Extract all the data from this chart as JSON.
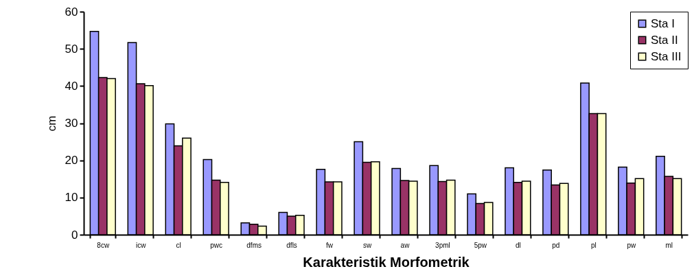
{
  "chart_data": {
    "type": "bar",
    "xlabel": "Karakteristik Morfometrik",
    "ylabel": "cm",
    "categories": [
      "8cw",
      "icw",
      "cl",
      "pwc",
      "dfms",
      "dfls",
      "fw",
      "sw",
      "aw",
      "3pml",
      "5pw",
      "dl",
      "pd",
      "pl",
      "pw",
      "ml"
    ],
    "series": [
      {
        "name": "Sta I",
        "color": "#9999ff",
        "values": [
          54.7,
          51.7,
          29.8,
          20.2,
          3.2,
          6.0,
          17.6,
          25.0,
          17.8,
          18.6,
          11.0,
          18.0,
          17.4,
          40.8,
          18.2,
          21.1
        ]
      },
      {
        "name": "Sta II",
        "color": "#993366",
        "values": [
          42.3,
          40.6,
          23.9,
          14.7,
          2.8,
          5.0,
          14.2,
          19.5,
          14.6,
          14.3,
          8.4,
          14.1,
          13.4,
          32.6,
          13.9,
          15.7
        ]
      },
      {
        "name": "Sta III",
        "color": "#ffffcc",
        "values": [
          42.0,
          40.1,
          26.0,
          14.1,
          2.3,
          5.2,
          14.2,
          19.6,
          14.4,
          14.7,
          8.7,
          14.4,
          13.8,
          32.6,
          15.1,
          15.1
        ]
      }
    ],
    "ylim": [
      0,
      60
    ],
    "yticks": [
      0,
      10,
      20,
      30,
      40,
      50,
      60
    ],
    "grid": false,
    "legend": "top right"
  }
}
